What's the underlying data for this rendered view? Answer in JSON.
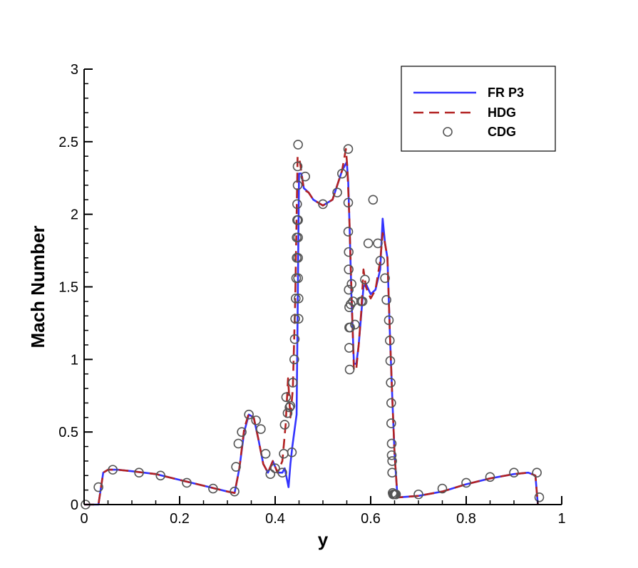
{
  "chart_data": {
    "type": "line",
    "xlabel": "y",
    "ylabel": "Mach Number",
    "xlim": [
      0,
      1
    ],
    "ylim": [
      0,
      3
    ],
    "x_ticks": [
      0,
      0.2,
      0.4,
      0.6,
      0.8,
      1
    ],
    "x_tick_labels": [
      "0",
      "0.2",
      "0.4",
      "0.6",
      "0.8",
      "1"
    ],
    "y_ticks": [
      0,
      0.5,
      1,
      1.5,
      2,
      2.5,
      3
    ],
    "y_tick_labels": [
      "0",
      "0.5",
      "1",
      "1.5",
      "2",
      "2.5",
      "3"
    ],
    "grid": false,
    "legend_position": "top-right",
    "series": [
      {
        "name": "FR P3",
        "style": "solid",
        "color": "#3333ff",
        "x": [
          0.0,
          0.03,
          0.04,
          0.05,
          0.07,
          0.1,
          0.15,
          0.2,
          0.25,
          0.3,
          0.315,
          0.325,
          0.335,
          0.345,
          0.355,
          0.365,
          0.375,
          0.385,
          0.395,
          0.405,
          0.415,
          0.42,
          0.428,
          0.432,
          0.436,
          0.44,
          0.445,
          0.45,
          0.455,
          0.46,
          0.47,
          0.48,
          0.5,
          0.52,
          0.54,
          0.55,
          0.553,
          0.556,
          0.56,
          0.565,
          0.57,
          0.575,
          0.58,
          0.585,
          0.59,
          0.6,
          0.61,
          0.62,
          0.625,
          0.63,
          0.635,
          0.64,
          0.645,
          0.65,
          0.655,
          0.66,
          0.7,
          0.75,
          0.8,
          0.85,
          0.9,
          0.93,
          0.945,
          0.95
        ],
        "y": [
          0.0,
          0.0,
          0.22,
          0.24,
          0.24,
          0.23,
          0.21,
          0.17,
          0.13,
          0.09,
          0.08,
          0.25,
          0.5,
          0.62,
          0.6,
          0.45,
          0.28,
          0.22,
          0.3,
          0.22,
          0.22,
          0.25,
          0.12,
          0.28,
          0.4,
          0.5,
          0.62,
          2.28,
          2.28,
          2.18,
          2.15,
          2.1,
          2.06,
          2.1,
          2.3,
          2.36,
          2.22,
          1.9,
          1.4,
          0.97,
          0.97,
          1.1,
          1.3,
          1.5,
          1.52,
          1.45,
          1.48,
          1.62,
          1.97,
          1.8,
          1.7,
          1.2,
          0.75,
          0.35,
          0.1,
          0.05,
          0.06,
          0.09,
          0.14,
          0.18,
          0.21,
          0.22,
          0.2,
          0.0
        ]
      },
      {
        "name": "HDG",
        "style": "dashed",
        "color": "#b22222",
        "x": [
          0.0,
          0.03,
          0.04,
          0.05,
          0.07,
          0.1,
          0.15,
          0.2,
          0.25,
          0.3,
          0.315,
          0.325,
          0.335,
          0.345,
          0.355,
          0.365,
          0.375,
          0.385,
          0.395,
          0.405,
          0.415,
          0.422,
          0.427,
          0.432,
          0.437,
          0.442,
          0.447,
          0.452,
          0.46,
          0.47,
          0.48,
          0.5,
          0.52,
          0.54,
          0.548,
          0.551,
          0.555,
          0.56,
          0.565,
          0.57,
          0.575,
          0.58,
          0.585,
          0.59,
          0.6,
          0.61,
          0.62,
          0.625,
          0.63,
          0.635,
          0.64,
          0.645,
          0.65,
          0.655,
          0.66,
          0.7,
          0.75,
          0.8,
          0.85,
          0.9,
          0.93,
          0.945,
          0.95
        ],
        "y": [
          0.0,
          0.0,
          0.22,
          0.24,
          0.24,
          0.23,
          0.21,
          0.17,
          0.13,
          0.09,
          0.08,
          0.25,
          0.52,
          0.63,
          0.6,
          0.45,
          0.28,
          0.22,
          0.3,
          0.22,
          0.3,
          0.55,
          0.87,
          0.6,
          0.8,
          1.4,
          2.4,
          2.36,
          2.17,
          2.15,
          2.1,
          2.06,
          2.1,
          2.3,
          2.45,
          2.33,
          2.0,
          1.45,
          0.92,
          0.94,
          1.1,
          1.32,
          1.62,
          1.5,
          1.42,
          1.48,
          1.68,
          1.87,
          1.8,
          1.7,
          1.2,
          0.75,
          0.35,
          0.1,
          0.05,
          0.06,
          0.09,
          0.14,
          0.18,
          0.21,
          0.22,
          0.2,
          0.0
        ]
      },
      {
        "name": "CDG",
        "style": "markers",
        "color": "#555555",
        "x": [
          0.003,
          0.03,
          0.06,
          0.115,
          0.16,
          0.215,
          0.27,
          0.315,
          0.318,
          0.323,
          0.33,
          0.345,
          0.36,
          0.37,
          0.38,
          0.39,
          0.4,
          0.415,
          0.418,
          0.42,
          0.423,
          0.426,
          0.43,
          0.432,
          0.435,
          0.437,
          0.44,
          0.441,
          0.442,
          0.443,
          0.444,
          0.445,
          0.445,
          0.446,
          0.446,
          0.447,
          0.447,
          0.448,
          0.448,
          0.448,
          0.448,
          0.448,
          0.449,
          0.449,
          0.463,
          0.5,
          0.53,
          0.54,
          0.553,
          0.553,
          0.553,
          0.554,
          0.554,
          0.554,
          0.555,
          0.555,
          0.555,
          0.556,
          0.557,
          0.558,
          0.56,
          0.563,
          0.567,
          0.58,
          0.583,
          0.588,
          0.595,
          0.605,
          0.615,
          0.62,
          0.63,
          0.633,
          0.638,
          0.64,
          0.641,
          0.642,
          0.643,
          0.643,
          0.644,
          0.644,
          0.645,
          0.645,
          0.646,
          0.647,
          0.648,
          0.65,
          0.652,
          0.653,
          0.7,
          0.75,
          0.8,
          0.85,
          0.9,
          0.948,
          0.953
        ],
        "y": [
          0.0,
          0.12,
          0.24,
          0.22,
          0.2,
          0.15,
          0.11,
          0.09,
          0.26,
          0.42,
          0.5,
          0.62,
          0.58,
          0.52,
          0.35,
          0.21,
          0.25,
          0.22,
          0.35,
          0.55,
          0.74,
          0.63,
          0.67,
          0.68,
          0.36,
          0.84,
          1.0,
          1.14,
          1.28,
          1.42,
          1.56,
          1.7,
          1.84,
          1.96,
          2.07,
          2.2,
          2.33,
          2.48,
          1.96,
          1.84,
          1.7,
          1.56,
          1.42,
          1.28,
          2.26,
          2.07,
          2.15,
          2.28,
          2.45,
          2.08,
          1.88,
          1.74,
          1.62,
          1.48,
          1.36,
          1.22,
          1.08,
          0.93,
          1.22,
          1.38,
          1.52,
          1.4,
          1.24,
          1.4,
          1.4,
          1.55,
          1.8,
          2.1,
          1.8,
          1.68,
          1.56,
          1.41,
          1.27,
          1.13,
          0.99,
          0.84,
          0.7,
          0.56,
          0.42,
          0.34,
          0.3,
          0.22,
          0.08,
          0.07,
          0.07,
          0.07,
          0.07,
          0.07,
          0.07,
          0.11,
          0.15,
          0.19,
          0.22,
          0.22,
          0.05
        ]
      }
    ]
  }
}
